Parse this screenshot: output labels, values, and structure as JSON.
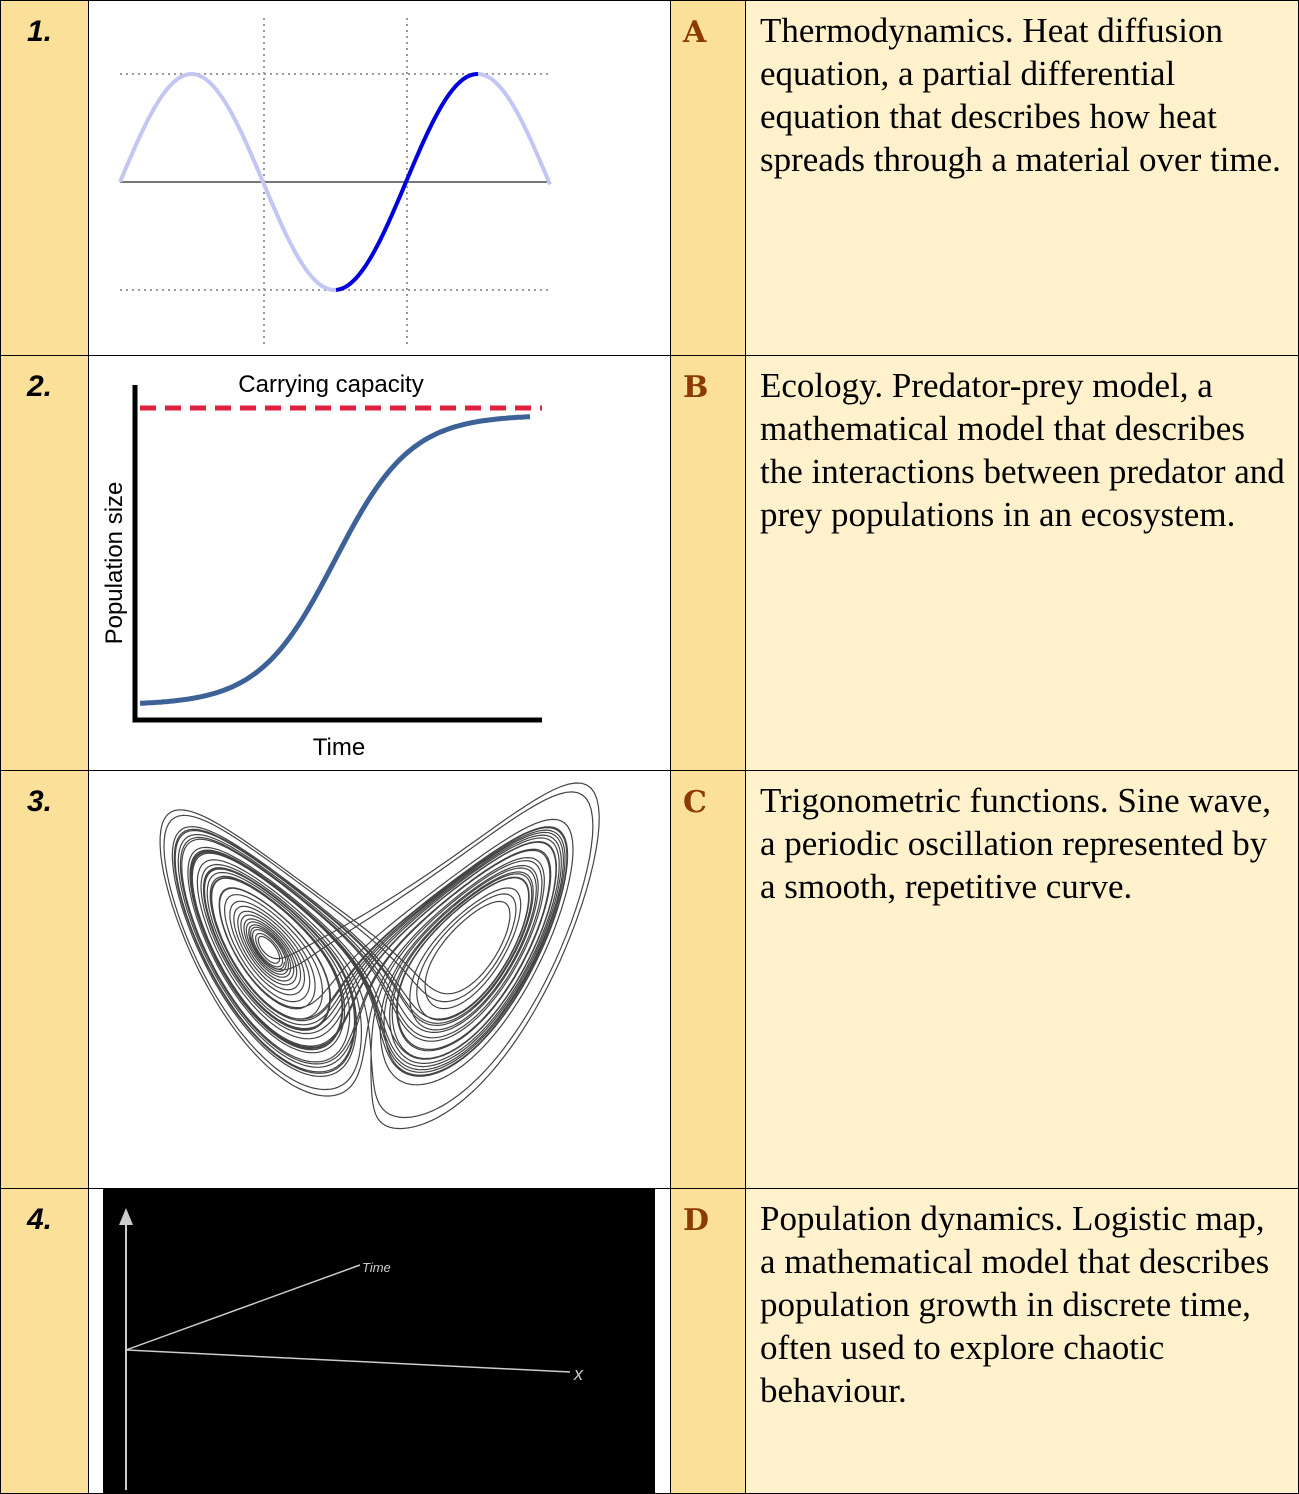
{
  "rows": [
    {
      "number": "1.",
      "letter": "A",
      "text": "Thermodynamics. Heat diffusion equation, a partial differential equation that describes how heat spreads through a material over time."
    },
    {
      "number": "2.",
      "letter": "B",
      "text": "Ecology. Predator-prey model, a mathematical model that describes the interactions between predator and prey populations in an ecosystem."
    },
    {
      "number": "3.",
      "letter": "C",
      "text": "Trigonometric functions. Sine wave, a periodic oscillation represented by a smooth, repetitive curve."
    },
    {
      "number": "4.",
      "letter": "D",
      "text": "Population dynamics. Logistic map, a mathematical model that describes population growth in discrete time, often used to explore chaotic behaviour."
    }
  ],
  "figures": {
    "logistic": {
      "title": "Carrying capacity",
      "y_label": "Population size",
      "x_label": "Time"
    },
    "wave": {
      "t_label": "Time",
      "x_label": "x"
    }
  }
}
